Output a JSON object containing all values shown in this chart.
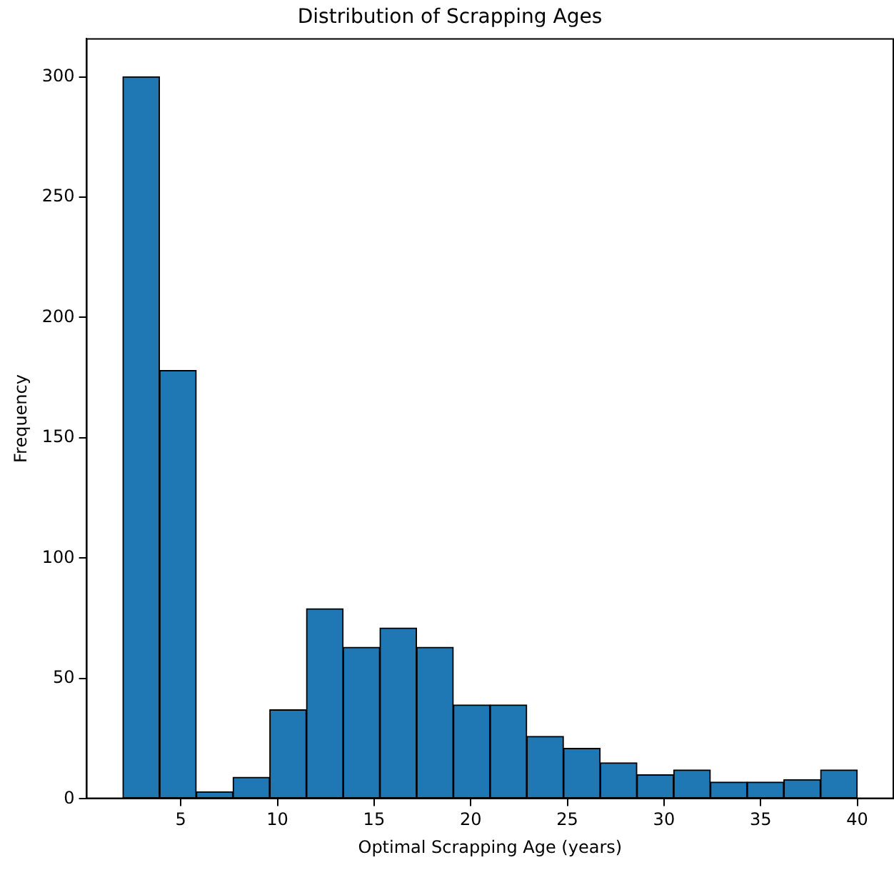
{
  "chart_data": {
    "type": "histogram",
    "title": "Distribution of Scrapping Ages",
    "xlabel": "Optimal Scrapping Age (years)",
    "ylabel": "Frequency",
    "bins": [
      2,
      3.9,
      5.8,
      7.7,
      9.6,
      11.5,
      13.4,
      15.3,
      17.2,
      19.1,
      21,
      22.9,
      24.8,
      26.7,
      28.6,
      30.5,
      32.4,
      34.3,
      36.2,
      38.1,
      40
    ],
    "values": [
      300,
      178,
      3,
      9,
      37,
      79,
      63,
      71,
      63,
      39,
      39,
      26,
      21,
      15,
      10,
      12,
      7,
      7,
      8,
      12
    ],
    "color": "#1f77b4",
    "xlim": [
      0.1,
      41.9
    ],
    "xticks": [
      5,
      10,
      15,
      20,
      25,
      30,
      35,
      40
    ],
    "ylim": [
      0,
      316
    ],
    "yticks": [
      0,
      50,
      100,
      150,
      200,
      250,
      300
    ],
    "grid": false,
    "legend": false
  }
}
